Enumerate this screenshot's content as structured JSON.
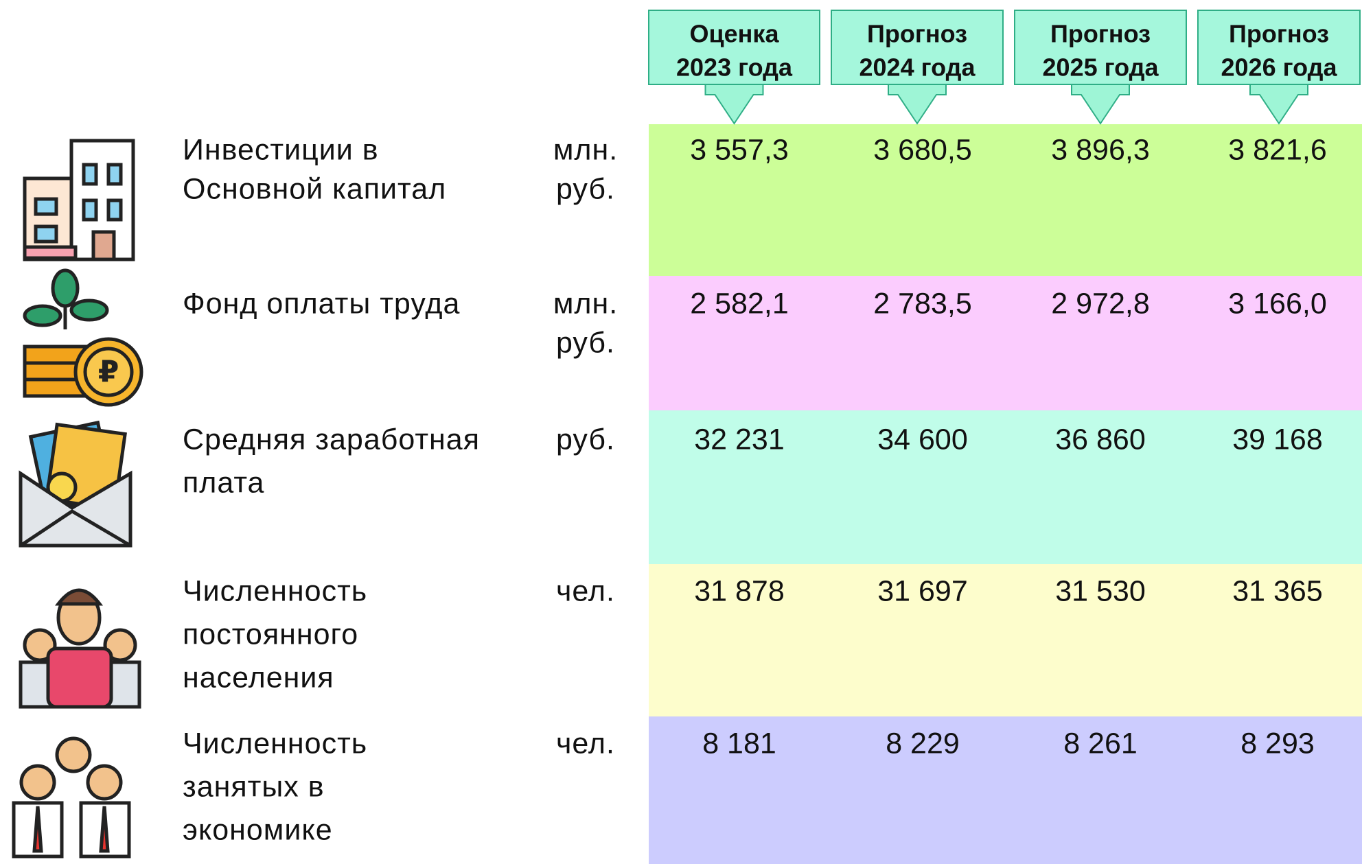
{
  "header": {
    "columns": [
      {
        "lines": [
          "Оценка",
          "2023 года"
        ]
      },
      {
        "lines": [
          "Прогноз",
          "2024 года"
        ]
      },
      {
        "lines": [
          "Прогноз",
          "2025 года"
        ]
      },
      {
        "lines": [
          "Прогноз",
          "2026 года"
        ]
      }
    ]
  },
  "table": {
    "rows": [
      {
        "label_lines": [
          "Инвестиции в",
          "Основной капитал"
        ],
        "unit_lines": [
          "млн.",
          "руб."
        ],
        "values": [
          "3 557,3",
          "3 680,5",
          "3 896,3",
          "3 821,6"
        ]
      },
      {
        "label_lines": [
          "Фонд оплаты труда"
        ],
        "unit_lines": [
          "млн.",
          "руб."
        ],
        "values": [
          "2 582,1",
          "2 783,5",
          "2 972,8",
          "3 166,0"
        ]
      },
      {
        "label_lines": [
          "Средняя заработная",
          "плата"
        ],
        "unit_lines": [
          "руб."
        ],
        "values": [
          "32 231",
          "34 600",
          "36 860",
          "39 168"
        ]
      },
      {
        "label_lines": [
          "Численность",
          "постоянного",
          "населения"
        ],
        "unit_lines": [
          "чел."
        ],
        "values": [
          "31 878",
          "31 697",
          "31 530",
          "31 365"
        ]
      },
      {
        "label_lines": [
          "Численность",
          "занятых в",
          "экономике"
        ],
        "unit_lines": [
          "чел."
        ],
        "values": [
          "8 181",
          "8 229",
          "8 261",
          "8 293"
        ]
      }
    ]
  }
}
